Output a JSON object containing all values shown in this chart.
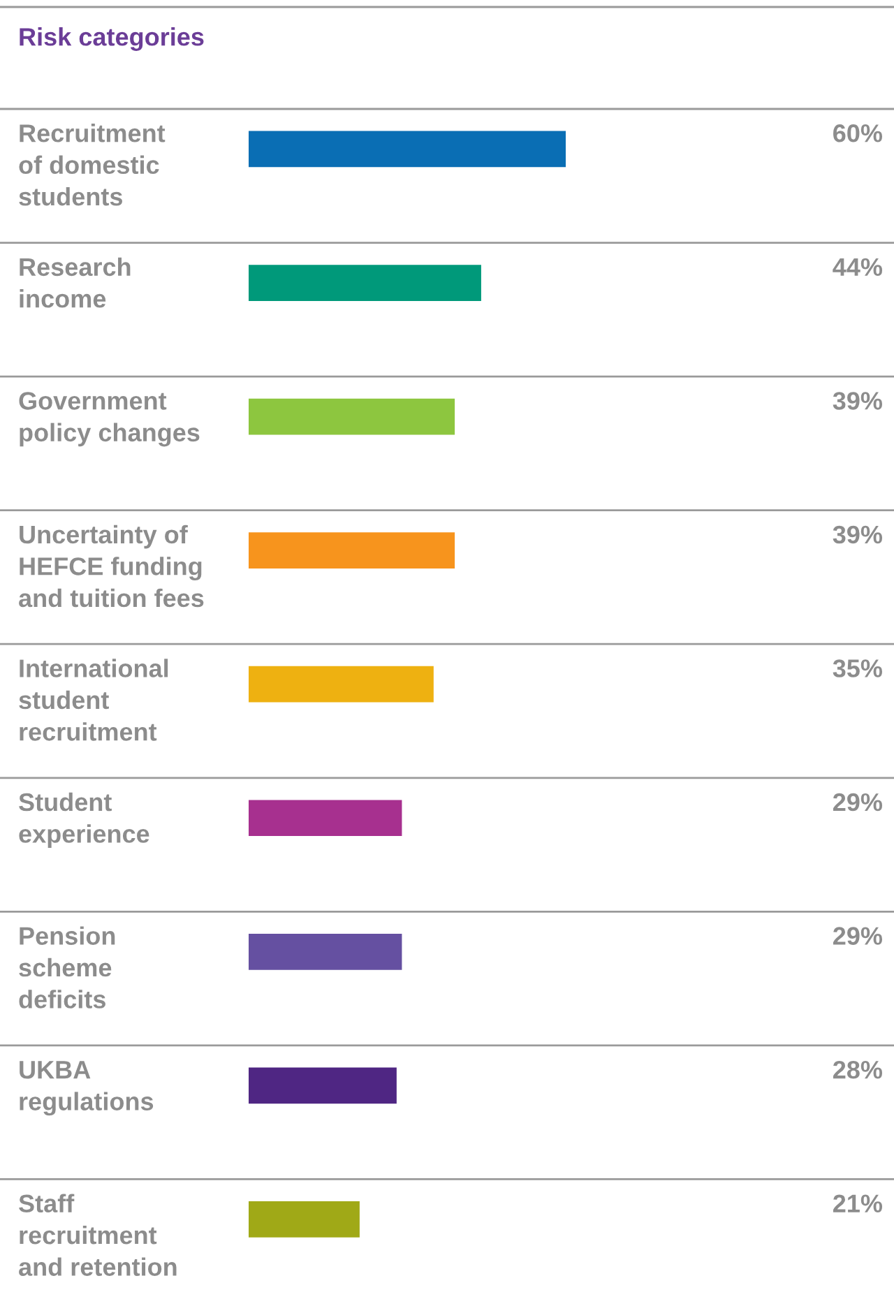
{
  "chart_data": {
    "type": "bar",
    "orientation": "horizontal",
    "title": "Risk categories",
    "categories": [
      "Recruitment\nof domestic\nstudents",
      "Research\nincome",
      "Government\npolicy changes",
      "Uncertainty of\nHEFCE funding\nand tuition fees",
      "International\nstudent\nrecruitment",
      "Student\nexperience",
      "Pension\nscheme\ndeficits",
      "UKBA\nregulations",
      "Staff\nrecruitment\nand retention"
    ],
    "values": [
      60,
      44,
      39,
      39,
      35,
      29,
      29,
      28,
      21
    ],
    "value_labels": [
      "60%",
      "44%",
      "39%",
      "39%",
      "35%",
      "29%",
      "29%",
      "28%",
      "21%"
    ],
    "colors": [
      "#0a6eb4",
      "#00997a",
      "#8dc63f",
      "#f7941d",
      "#eeb111",
      "#a7308f",
      "#6550a1",
      "#4f2683",
      "#a0a917"
    ]
  }
}
